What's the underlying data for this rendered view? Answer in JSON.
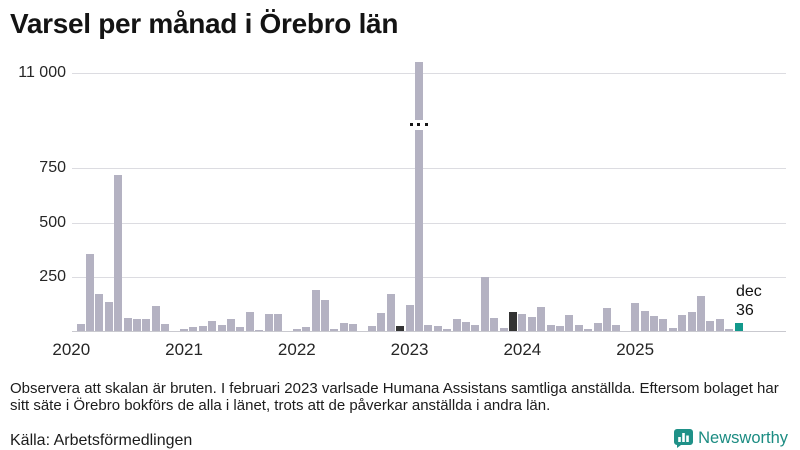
{
  "title": "Varsel per månad i Örebro län",
  "annotation": {
    "line1": "dec",
    "line2": "36"
  },
  "footnote": {
    "lines": [
      "Observera att skalan är bruten. I februari 2023 varlsade Humana Assistans samtliga anställda. Eftersom bolaget har",
      "sitt säte i Örebro bokförs de alla i länet, trots att de påverkar anställda i andra län."
    ]
  },
  "source": "Källa: Arbetsförmedlingen",
  "logo": {
    "brand": "Newsworthy"
  },
  "colors": {
    "bar_default": "#b4b2c2",
    "bar_dark": "#333333",
    "bar_accent": "#12998c",
    "gridline": "#dcdce1",
    "axisline": "#c9c9cf",
    "brand_teal": "#1b8c82",
    "text": "#1a1a1a"
  },
  "chart_data": {
    "type": "bar",
    "title": "Varsel per månad i Örebro län",
    "xlabel": "",
    "ylabel": "",
    "unit": "varsel (antal personer)",
    "grid": true,
    "y_axis": {
      "broken": true,
      "break_between": [
        750,
        11000
      ],
      "ticks": [
        {
          "label": "11 000",
          "value": 11000
        },
        {
          "label": "750",
          "value": 750
        },
        {
          "label": "500",
          "value": 500
        },
        {
          "label": "250",
          "value": 250
        }
      ]
    },
    "x_axis": {
      "year_labels": [
        "2020",
        "2021",
        "2022",
        "2023",
        "2024",
        "2025"
      ]
    },
    "series": [
      {
        "year": 2020,
        "values": [
          0,
          30,
          355,
          170,
          135,
          720,
          58,
          54,
          54,
          115,
          30,
          0
        ]
      },
      {
        "year": 2021,
        "values": [
          8,
          17,
          25,
          46,
          29,
          54,
          20,
          86,
          5,
          78,
          78,
          0
        ]
      },
      {
        "year": 2022,
        "values": [
          9,
          17,
          190,
          143,
          11,
          38,
          30,
          0,
          25,
          84,
          170,
          24
        ]
      },
      {
        "year": 2023,
        "values": [
          118,
          11100,
          28,
          23,
          8,
          55,
          43,
          26,
          250,
          58,
          14,
          86
        ]
      },
      {
        "year": 2024,
        "values": [
          77,
          64,
          112,
          28,
          23,
          74,
          28,
          9,
          35,
          105,
          28,
          0
        ]
      },
      {
        "year": 2025,
        "values": [
          127,
          92,
          68,
          54,
          12,
          72,
          89,
          160,
          47,
          53,
          8,
          36
        ]
      }
    ],
    "highlight_months": [
      {
        "date": "2022-12",
        "style": "dark"
      },
      {
        "date": "2023-12",
        "style": "dark"
      },
      {
        "date": "2025-12",
        "style": "accent"
      }
    ],
    "broken_bar": {
      "date": "2023-02",
      "value_estimate": 11100,
      "note": "skalan är bruten"
    },
    "last_point_annotation": {
      "date": "2025-12",
      "label": "dec",
      "value_label": "36"
    }
  }
}
